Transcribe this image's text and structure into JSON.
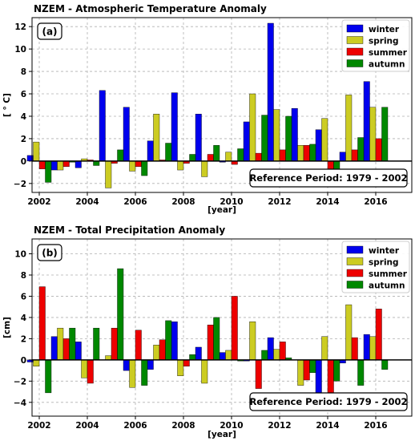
{
  "chart_data": [
    {
      "type": "bar",
      "title": "NZEM - Atmospheric Temperature Anomaly",
      "panel_label": "(a)",
      "xlabel": "[year]",
      "ylabel": "[ ° C]",
      "xlim": [
        2001.7,
        2017.5
      ],
      "ylim": [
        -2.8,
        12.8
      ],
      "xticks": [
        2002,
        2004,
        2006,
        2008,
        2010,
        2012,
        2014,
        2016
      ],
      "yticks": [
        -2,
        0,
        2,
        4,
        6,
        8,
        10,
        12
      ],
      "grid": true,
      "legend": "top-right",
      "annotation": "Reference Period: 1979 - 2002",
      "x": [
        2002,
        2003,
        2004,
        2005,
        2006,
        2007,
        2008,
        2009,
        2010,
        2011,
        2012,
        2013,
        2014,
        2015,
        2016
      ],
      "series": [
        {
          "name": "winter",
          "color": "#0000ee",
          "values": [
            0.5,
            -0.8,
            -0.6,
            6.3,
            4.8,
            1.8,
            6.1,
            4.2,
            -0.1,
            3.5,
            12.3,
            4.7,
            2.8,
            0.8,
            7.1
          ]
        },
        {
          "name": "spring",
          "color": "#cccc22",
          "values": [
            1.7,
            -0.8,
            0.2,
            -2.4,
            -0.9,
            4.2,
            -0.8,
            -1.4,
            0.8,
            6.0,
            4.6,
            1.4,
            3.8,
            5.9,
            4.8
          ]
        },
        {
          "name": "summer",
          "color": "#ee0000",
          "values": [
            -0.7,
            -0.5,
            0.1,
            -0.2,
            -0.5,
            0.1,
            -0.2,
            0.6,
            -0.3,
            0.7,
            1.0,
            1.4,
            -0.7,
            1.0,
            2.0
          ]
        },
        {
          "name": "autumn",
          "color": "#008800",
          "values": [
            -1.9,
            -0.1,
            -0.4,
            1.0,
            -1.3,
            1.6,
            0.6,
            1.4,
            1.1,
            4.1,
            4.0,
            1.5,
            -0.7,
            2.1,
            4.8
          ]
        }
      ]
    },
    {
      "type": "bar",
      "title": "NZEM - Total Precipitation Anomaly",
      "panel_label": "(b)",
      "xlabel": "[year]",
      "ylabel": "[cm]",
      "xlim": [
        2001.7,
        2017.5
      ],
      "ylim": [
        -5.3,
        11.4
      ],
      "xticks": [
        2002,
        2004,
        2006,
        2008,
        2010,
        2012,
        2014,
        2016
      ],
      "yticks": [
        -4,
        -2,
        0,
        2,
        4,
        6,
        8,
        10
      ],
      "grid": true,
      "legend": "top-right",
      "annotation": "Reference Period: 1979 - 2002",
      "x": [
        2002,
        2003,
        2004,
        2005,
        2006,
        2007,
        2008,
        2009,
        2010,
        2011,
        2012,
        2013,
        2014,
        2015,
        2016
      ],
      "series": [
        {
          "name": "winter",
          "color": "#0000ee",
          "values": [
            -0.2,
            2.2,
            1.7,
            0.0,
            -1.0,
            -0.9,
            3.6,
            1.2,
            0.7,
            -0.1,
            2.1,
            0.0,
            -3.3,
            -0.3,
            2.4
          ]
        },
        {
          "name": "spring",
          "color": "#cccc22",
          "values": [
            -0.6,
            3.0,
            -1.7,
            0.4,
            -2.6,
            1.4,
            -1.5,
            -2.2,
            0.9,
            3.6,
            1.0,
            -2.4,
            2.2,
            5.2,
            2.2
          ]
        },
        {
          "name": "summer",
          "color": "#ee0000",
          "values": [
            6.9,
            2.0,
            -2.2,
            3.0,
            2.8,
            1.9,
            -0.6,
            3.3,
            6.0,
            -2.7,
            1.7,
            -1.9,
            -3.2,
            2.1,
            4.8
          ]
        },
        {
          "name": "autumn",
          "color": "#008800",
          "values": [
            -3.1,
            3.0,
            3.0,
            8.6,
            -2.4,
            3.7,
            0.5,
            4.0,
            -0.1,
            0.9,
            0.2,
            -1.2,
            -2.0,
            -2.4,
            -0.9
          ]
        }
      ]
    }
  ]
}
